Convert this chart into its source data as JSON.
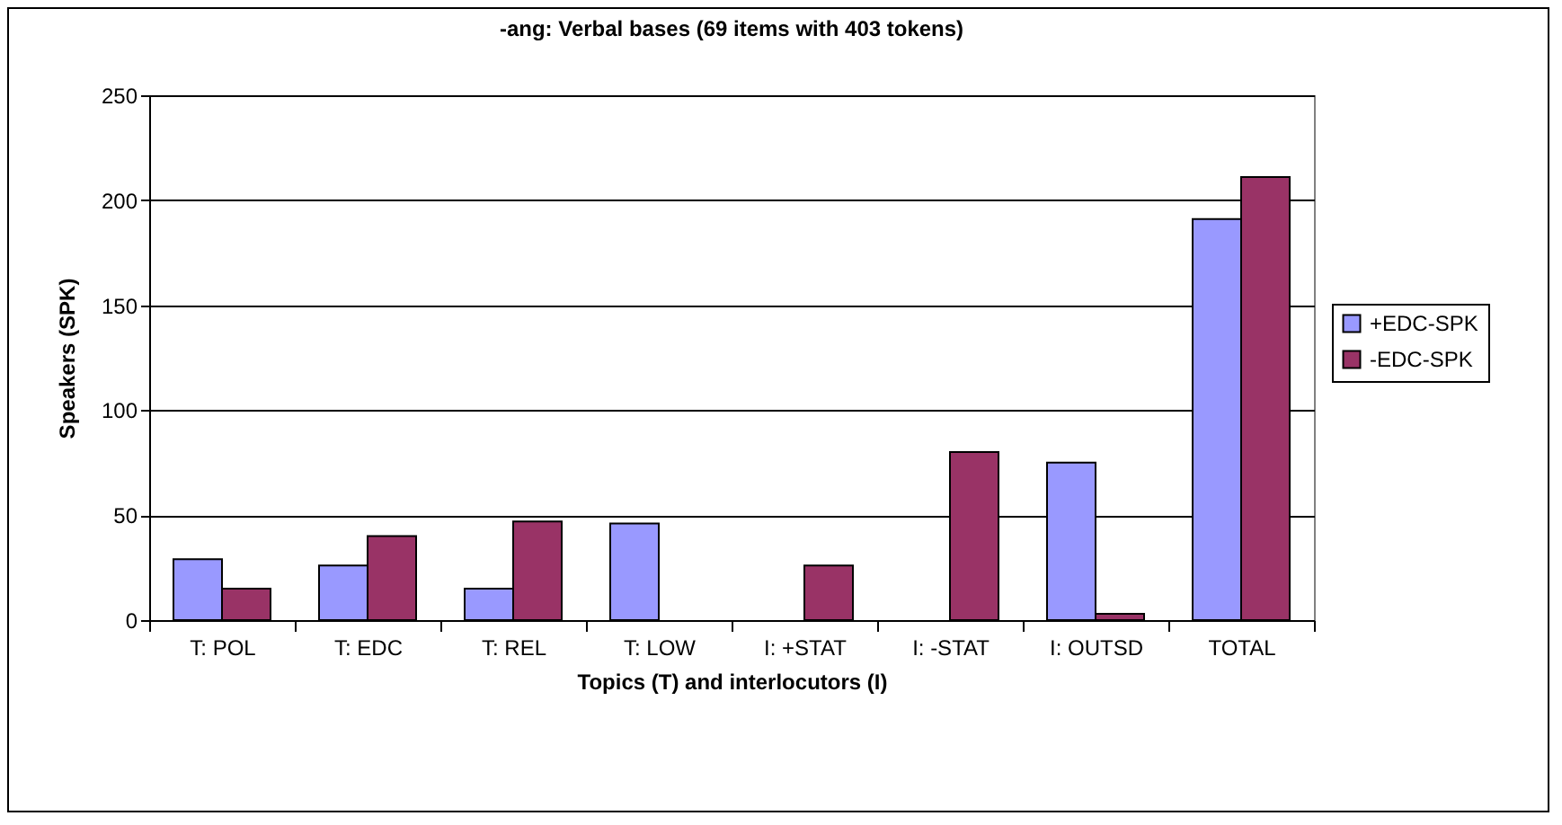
{
  "chart_data": {
    "type": "bar",
    "title": "-ang: Verbal bases (69 items with 403 tokens)",
    "xlabel": "Topics (T) and interlocutors (I)",
    "ylabel": "Speakers (SPK)",
    "categories": [
      "T: POL",
      "T: EDC",
      "T: REL",
      "T: LOW",
      "I: +STAT",
      "I: -STAT",
      "I: OUTSD",
      "TOTAL"
    ],
    "series": [
      {
        "name": "+EDC-SPK",
        "color": "#9999ff",
        "values": [
          29,
          26,
          15,
          46,
          null,
          null,
          75,
          191
        ]
      },
      {
        "name": "-EDC-SPK",
        "color": "#993366",
        "values": [
          15,
          40,
          47,
          null,
          26,
          80,
          3,
          211
        ]
      }
    ],
    "ylim": [
      0,
      250
    ],
    "yticks": [
      0,
      50,
      100,
      150,
      200,
      250
    ],
    "grid": "y",
    "legend": "right"
  }
}
